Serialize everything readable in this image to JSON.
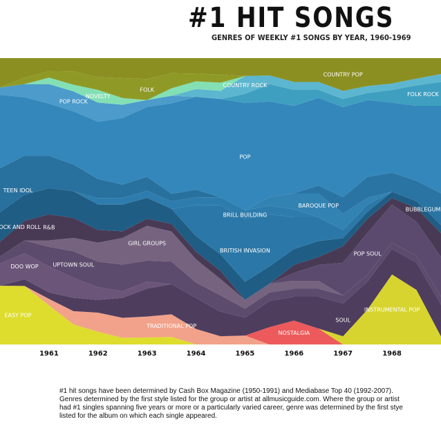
{
  "title": "#1 HIT SONGS",
  "subtitle": "GENRES OF WEEKLY #1 SONGS BY YEAR, 1960-1969",
  "footnote": "#1 hit songs have been determined by Cash Box Magazine (1950-1991) and Mediabase Top 40 (1992-2007). Genres determined by the first style listed for the group or artist at allmusicguide.com. Where the group or artist had #1 singles spanning five years or more or a particularly varied career, genre was determined by the first stye listed for the album on which each single appeared.",
  "chart_data": {
    "type": "area",
    "stacking": "stream",
    "x": [
      1960.0,
      1960.5,
      1961.0,
      1961.5,
      1962.0,
      1962.5,
      1963.0,
      1963.5,
      1964.0,
      1964.5,
      1965.0,
      1965.5,
      1966.0,
      1966.5,
      1967.0,
      1967.5,
      1968.0,
      1968.5,
      1969.0
    ],
    "xticks": [
      "1961",
      "1962",
      "1963",
      "1964",
      "1965",
      "1966",
      "1967",
      "1968"
    ],
    "xtick_values": [
      1961,
      1962,
      1963,
      1964,
      1965,
      1966,
      1967,
      1968
    ],
    "series": [
      {
        "name": "EASY POP",
        "color": "#dedd2e",
        "values": [
          8,
          9,
          6,
          3,
          2,
          1,
          1,
          1,
          0,
          0,
          0,
          0,
          0,
          0,
          0,
          0,
          0,
          0,
          0
        ]
      },
      {
        "name": "TRADITIONAL POP",
        "color": "#f2a28a",
        "values": [
          0,
          0,
          1,
          2,
          3,
          3,
          3,
          3,
          2,
          1,
          1,
          0,
          0,
          0,
          0,
          0,
          0,
          0,
          0
        ]
      },
      {
        "name": "NOSTALGIA",
        "color": "#ec5a5c",
        "values": [
          0,
          0,
          0,
          0,
          0,
          0,
          0,
          0,
          0,
          0,
          0,
          2,
          3,
          2,
          0,
          0,
          0,
          0,
          0
        ]
      },
      {
        "name": "INSTRUMENTAL POP",
        "color": "#d7d42f",
        "values": [
          0,
          0,
          0,
          0,
          0,
          0,
          0,
          0,
          0,
          0,
          0,
          0,
          0,
          0,
          1,
          5,
          11,
          8,
          1
        ]
      },
      {
        "name": "SOUL",
        "color": "#4e3d5d",
        "values": [
          0,
          1,
          1,
          2,
          2,
          3,
          4,
          4,
          4,
          3,
          2,
          3,
          3,
          4,
          4,
          4,
          4,
          4,
          4
        ]
      },
      {
        "name": "DOO WOP",
        "color": "#6b5578",
        "values": [
          3,
          4,
          4,
          3,
          2,
          1,
          1,
          0,
          0,
          0,
          0,
          0,
          0,
          0,
          0,
          0,
          0,
          0,
          0
        ]
      },
      {
        "name": "UPTOWN SOUL",
        "color": "#5d4b6d",
        "values": [
          1,
          2,
          3,
          4,
          4,
          4,
          3,
          3,
          2,
          2,
          1,
          1,
          1,
          1,
          1,
          1,
          1,
          1,
          1
        ]
      },
      {
        "name": "GIRL GROUPS",
        "color": "#75637f",
        "values": [
          0,
          0,
          1,
          2,
          3,
          4,
          5,
          4,
          3,
          2,
          1,
          1,
          1,
          1,
          0,
          0,
          0,
          0,
          0
        ]
      },
      {
        "name": "POP SOUL",
        "color": "#5c4a6e",
        "values": [
          0,
          0,
          0,
          0,
          0,
          0,
          0,
          0,
          0,
          0,
          0,
          0,
          1,
          2,
          4,
          6,
          6,
          5,
          5
        ]
      },
      {
        "name": "R&B",
        "color": "#483a55",
        "values": [
          2,
          3,
          4,
          3,
          2,
          1,
          1,
          1,
          1,
          1,
          0,
          0,
          1,
          1,
          2,
          2,
          1,
          2,
          3
        ]
      },
      {
        "name": "ROCK AND ROLL",
        "color": "#1f5d85",
        "values": [
          4,
          4,
          4,
          4,
          4,
          4,
          3,
          2,
          2,
          2,
          2,
          2,
          2,
          2,
          1,
          1,
          1,
          1,
          1
        ]
      },
      {
        "name": "BRITISH INVASION",
        "color": "#2b78a8",
        "values": [
          0,
          0,
          0,
          0,
          0,
          0,
          0,
          0,
          4,
          6,
          7,
          6,
          4,
          3,
          1,
          1,
          0,
          0,
          0
        ]
      },
      {
        "name": "BRILL BUILDING",
        "color": "#2d7cad",
        "values": [
          0,
          0,
          0,
          0,
          1,
          1,
          1,
          1,
          1,
          1,
          1,
          1,
          1,
          0,
          0,
          0,
          0,
          0,
          0
        ]
      },
      {
        "name": "BAROQUE POP",
        "color": "#3282b2",
        "values": [
          0,
          0,
          0,
          0,
          0,
          0,
          0,
          0,
          0,
          0,
          0,
          1,
          2,
          3,
          2,
          1,
          0,
          0,
          0
        ]
      },
      {
        "name": "TEEN IDOL",
        "color": "#28709e",
        "values": [
          6,
          6,
          5,
          4,
          3,
          2,
          2,
          1,
          1,
          0,
          0,
          0,
          0,
          0,
          0,
          0,
          0,
          0,
          0
        ]
      },
      {
        "name": "BUBBLEGUM",
        "color": "#2a74a4",
        "values": [
          0,
          0,
          0,
          0,
          0,
          0,
          0,
          0,
          0,
          0,
          0,
          0,
          0,
          1,
          2,
          3,
          3,
          3,
          4
        ]
      },
      {
        "name": "POP",
        "color": "#3487bb",
        "values": [
          10,
          9,
          8,
          8,
          9,
          10,
          10,
          12,
          12,
          12,
          12,
          11,
          11,
          11,
          11,
          11,
          11,
          11,
          11
        ]
      },
      {
        "name": "POP ROCK",
        "color": "#4c9bcb",
        "values": [
          1,
          2,
          3,
          3,
          3,
          2,
          1,
          1,
          0,
          0,
          0,
          0,
          0,
          0,
          0,
          0,
          0,
          0,
          0
        ]
      },
      {
        "name": "FOLK ROCK",
        "color": "#3f9fc0",
        "values": [
          0,
          0,
          0,
          0,
          0,
          0,
          0,
          0,
          0,
          0,
          1,
          2,
          2,
          1,
          1,
          1,
          2,
          3,
          3
        ]
      },
      {
        "name": "COUNTRY ROCK",
        "color": "#5db6cf",
        "values": [
          0,
          0,
          0,
          0,
          0,
          0,
          0,
          0,
          1,
          1,
          2,
          1,
          1,
          1,
          1,
          1,
          1,
          1,
          1
        ]
      },
      {
        "name": "NOVELTY",
        "color": "#83e0b4",
        "values": [
          0,
          0,
          1,
          1,
          2,
          1,
          0,
          1,
          1,
          1,
          0,
          0,
          0,
          0,
          0,
          0,
          0,
          0,
          0
        ]
      },
      {
        "name": "FOLK",
        "color": "#8f9a26",
        "values": [
          0,
          1,
          1,
          2,
          2,
          3,
          3,
          2,
          1,
          1,
          0,
          0,
          0,
          0,
          0,
          0,
          0,
          0,
          0
        ]
      },
      {
        "name": "COUNTRY POP",
        "color": "#8b8f22",
        "values": [
          4,
          3,
          2,
          2,
          3,
          3,
          3,
          2,
          2,
          2,
          2,
          2,
          3,
          3,
          4,
          4,
          4,
          3,
          2
        ]
      }
    ]
  }
}
